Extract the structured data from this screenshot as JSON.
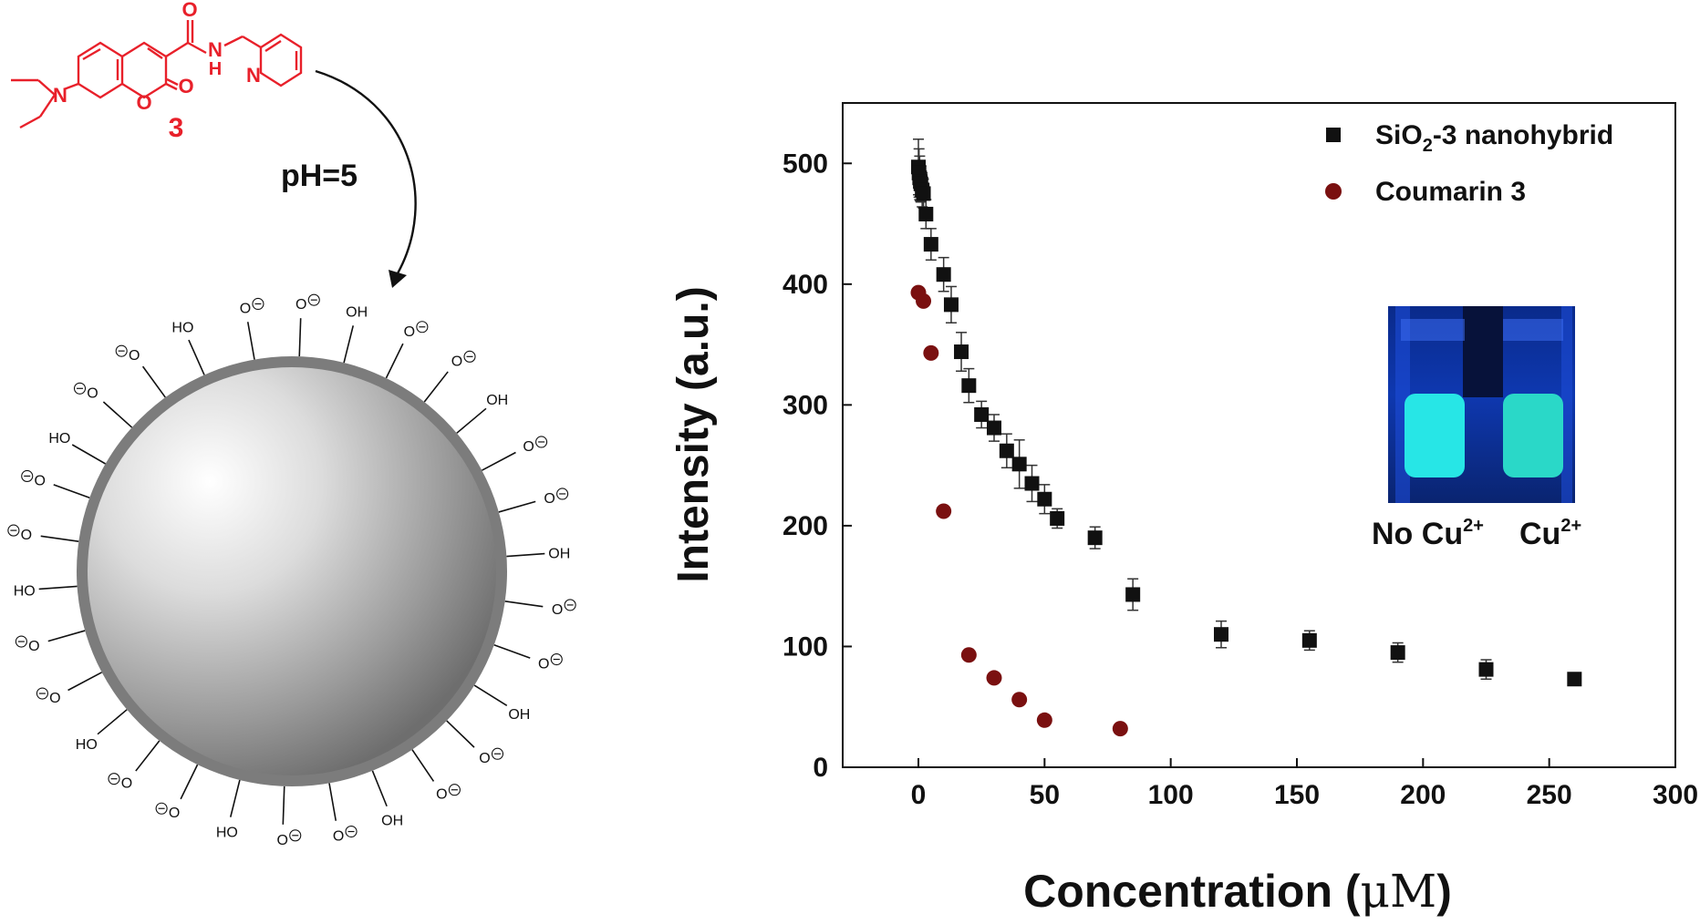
{
  "scheme": {
    "compound_label": "3",
    "atom_labels": {
      "O_carbonyl": "O",
      "N_amide": "N",
      "H_amide": "H",
      "N_pyridine": "N",
      "N_amine": "N",
      "O_ring": "O",
      "O_lactone": "O"
    },
    "arrow_label": "pH=5",
    "surface_groups": {
      "hydroxyl": "HO",
      "hydroxyl_right": "OH",
      "oxide": "O",
      "charge": "−"
    }
  },
  "inset": {
    "label_left": "No Cu",
    "label_left_sup": "2+",
    "label_right": "Cu",
    "label_right_sup": "2+"
  },
  "colors": {
    "molecule": "#e8202a",
    "series_a": "#111111",
    "series_b": "#7a1010",
    "vial_glow": "#27e6e6"
  },
  "chart_data": {
    "type": "scatter",
    "xlabel_main": "Concentration (",
    "xlabel_unit": "μM",
    "xlabel_end": ")",
    "ylabel": "Intensity (a.u.)",
    "xlim": [
      -30,
      300
    ],
    "ylim": [
      0,
      550
    ],
    "xticks": [
      0,
      50,
      100,
      150,
      200,
      250,
      300
    ],
    "yticks": [
      0,
      100,
      200,
      300,
      400,
      500
    ],
    "legend_position": "top-right",
    "series": [
      {
        "name_main": "SiO",
        "name_sub": "2",
        "name_end": "-3 nanohybrid",
        "marker": "square",
        "x": [
          0,
          0.25,
          0.5,
          0.75,
          1,
          1.5,
          2,
          3,
          5,
          10,
          13,
          17,
          20,
          25,
          30,
          35,
          40,
          45,
          50,
          55,
          70,
          85,
          120,
          155,
          190,
          225,
          260
        ],
        "y": [
          497,
          492,
          488,
          485,
          483,
          478,
          475,
          458,
          433,
          408,
          383,
          344,
          316,
          292,
          281,
          262,
          251,
          235,
          222,
          206,
          190,
          143,
          110,
          105,
          95,
          81,
          73
        ],
        "err": [
          23,
          20,
          18,
          16,
          15,
          14,
          12,
          12,
          13,
          14,
          15,
          16,
          14,
          11,
          11,
          14,
          20,
          15,
          12,
          8,
          9,
          13,
          11,
          8,
          8,
          8,
          4
        ]
      },
      {
        "name": "Coumarin 3",
        "marker": "circle",
        "x": [
          0,
          2,
          5,
          10,
          20,
          30,
          40,
          50,
          80
        ],
        "y": [
          393,
          386,
          343,
          212,
          93,
          74,
          56,
          39,
          32
        ]
      }
    ]
  }
}
